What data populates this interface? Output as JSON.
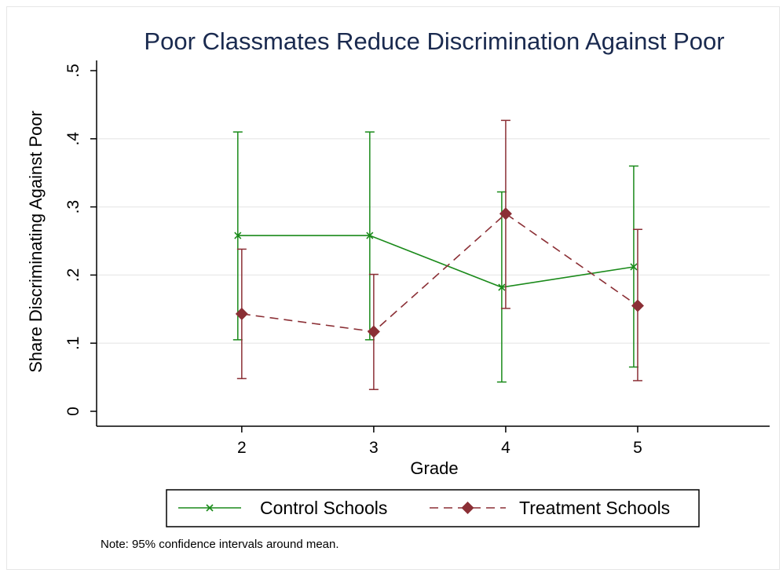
{
  "chart_data": {
    "type": "line",
    "title": "Poor Classmates Reduce Discrimination Against Poor",
    "xlabel": "Grade",
    "ylabel": "Share Discriminating Against Poor",
    "x": [
      2,
      3,
      4,
      5
    ],
    "x_tick_labels": [
      "2",
      "3",
      "4",
      "5"
    ],
    "xlim": [
      0.9,
      6.0
    ],
    "ylim": [
      0,
      0.5
    ],
    "y_ticks": [
      0,
      0.1,
      0.2,
      0.3,
      0.4,
      0.5
    ],
    "y_tick_labels": [
      "0",
      ".1",
      ".2",
      ".3",
      ".4",
      ".5"
    ],
    "grid": "horizontal",
    "legend_position": "bottom",
    "note": "Note: 95% confidence intervals around mean.",
    "series": [
      {
        "name": "Control Schools",
        "color": "#1a8a1a",
        "marker": "x",
        "line_style": "solid",
        "x_offset": -0.03,
        "values": [
          0.258,
          0.258,
          0.182,
          0.212
        ],
        "ci_low": [
          0.105,
          0.105,
          0.043,
          0.065
        ],
        "ci_high": [
          0.41,
          0.41,
          0.322,
          0.36
        ]
      },
      {
        "name": "Treatment Schools",
        "color": "#8b2f35",
        "marker": "diamond",
        "line_style": "dashed",
        "x_offset": 0.0,
        "values": [
          0.143,
          0.117,
          0.29,
          0.155
        ],
        "ci_low": [
          0.048,
          0.032,
          0.151,
          0.045
        ],
        "ci_high": [
          0.238,
          0.201,
          0.427,
          0.267
        ]
      }
    ]
  }
}
